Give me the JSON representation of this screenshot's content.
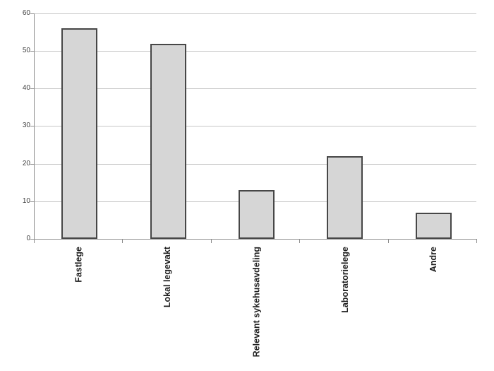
{
  "chart_data": {
    "type": "bar",
    "title": "",
    "xlabel": "",
    "ylabel": "",
    "categories": [
      "Fastlege",
      "Lokal legevakt",
      "Relevant sykehusavdeling",
      "Laboratorielege",
      "Andre"
    ],
    "values": [
      56,
      52,
      13,
      22,
      7
    ],
    "ylim": [
      0,
      60
    ],
    "ytick_step": 10,
    "ytick_labels": [
      "0",
      "10",
      "20",
      "30",
      "40",
      "50",
      "60"
    ],
    "grid": true,
    "legend": false,
    "colors": {
      "background": "#ffffff",
      "bar_fill": "#d6d6d6",
      "bar_border": "#474747",
      "gridline": "#c6c6c6",
      "axis": "#8e8e8e",
      "ytick_text": "#3f3f3f",
      "category_text": "#1f1f1f"
    }
  }
}
